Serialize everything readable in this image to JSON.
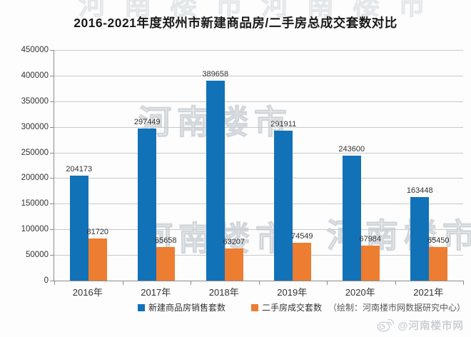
{
  "title": "2016-2021年度郑州市新建商品房/二手房总成交套数对比",
  "chart_data": {
    "type": "bar",
    "categories": [
      "2016年",
      "2017年",
      "2018年",
      "2019年",
      "2020年",
      "2021年"
    ],
    "series": [
      {
        "name": "新建商品房销售套数",
        "color": "#1272b8",
        "values": [
          204173,
          297449,
          389658,
          291911,
          243600,
          163448
        ]
      },
      {
        "name": "二手房成交套数",
        "color": "#ed7d31",
        "values": [
          81720,
          65658,
          63207,
          74549,
          67984,
          65450
        ]
      }
    ],
    "ylabel": "",
    "xlabel": "",
    "ylim": [
      0,
      450000
    ],
    "ytick_step": 50000,
    "grid": true,
    "legend_position": "bottom",
    "data_labels": true
  },
  "credit": {
    "text": "（绘制：河南楼市网数据研究中心）"
  },
  "watermark": {
    "text": "河南楼市"
  },
  "footer": {
    "weibo_handle": "@河南楼市网",
    "weibo_icon": "weibo-icon"
  }
}
